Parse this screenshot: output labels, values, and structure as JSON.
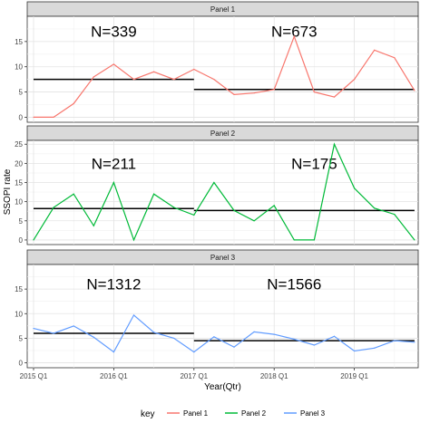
{
  "chart_data": {
    "type": "line",
    "xlabel": "Year(Qtr)",
    "ylabel": "SSOPI rate",
    "xlim": [
      0,
      19.5
    ],
    "x_ticks": [
      {
        "x": 0,
        "label": "2015 Q1"
      },
      {
        "x": 4,
        "label": "2016 Q1"
      },
      {
        "x": 8,
        "label": "2017 Q1"
      },
      {
        "x": 12,
        "label": "2018 Q1"
      },
      {
        "x": 16,
        "label": "2019 Q1"
      }
    ],
    "y_ticks": [
      0,
      5,
      10,
      15,
      20,
      25
    ],
    "grid": true,
    "legend": {
      "title": "key",
      "position": "bottom"
    },
    "panels": [
      {
        "name": "Panel 1",
        "color": "#f8766d",
        "ylim": [
          -1,
          20
        ],
        "y_ticks": [
          0,
          5,
          10,
          15
        ],
        "values": [
          0,
          0,
          2.7,
          8,
          10.5,
          7.5,
          9,
          7.5,
          9.5,
          7.5,
          4.5,
          4.8,
          5.5,
          16,
          5,
          4,
          7.5,
          13.3,
          11.8,
          5.3
        ],
        "annotations": [
          {
            "text": "N=339",
            "x": 4,
            "y": 17
          },
          {
            "text": "N=673",
            "x": 13,
            "y": 17
          }
        ],
        "means": [
          {
            "x0": 0,
            "x1": 8,
            "y": 7.5
          },
          {
            "x0": 8,
            "x1": 19,
            "y": 5.5
          }
        ]
      },
      {
        "name": "Panel 2",
        "color": "#00ba38",
        "ylim": [
          -1.2,
          26
        ],
        "y_ticks": [
          0,
          5,
          10,
          15,
          20,
          25
        ],
        "values": [
          0,
          8.5,
          12,
          3.7,
          15,
          0,
          12,
          8.5,
          6.5,
          15,
          7.7,
          5,
          9,
          0,
          0,
          25,
          13.5,
          8.3,
          6.7,
          0
        ],
        "annotations": [
          {
            "text": "N=211",
            "x": 4,
            "y": 20
          },
          {
            "text": "N=175",
            "x": 14,
            "y": 20
          }
        ],
        "means": [
          {
            "x0": 0,
            "x1": 8,
            "y": 8.2
          },
          {
            "x0": 8,
            "x1": 19,
            "y": 7.7
          }
        ]
      },
      {
        "name": "Panel 3",
        "color": "#619cff",
        "ylim": [
          -1,
          20
        ],
        "y_ticks": [
          0,
          5,
          10,
          15
        ],
        "values": [
          7,
          6,
          7.5,
          5.2,
          2.2,
          9.7,
          6.2,
          5,
          2.2,
          5.3,
          3.2,
          6.3,
          5.8,
          4.8,
          3.6,
          5.4,
          2.4,
          3,
          4.5,
          4.2
        ],
        "annotations": [
          {
            "text": "N=1312",
            "x": 4,
            "y": 16
          },
          {
            "text": "N=1566",
            "x": 13,
            "y": 16
          }
        ],
        "means": [
          {
            "x0": 0,
            "x1": 8,
            "y": 6
          },
          {
            "x0": 8,
            "x1": 19,
            "y": 4.5
          }
        ]
      }
    ]
  }
}
